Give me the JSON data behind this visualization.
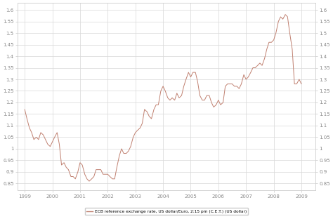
{
  "legend_label": "ECB reference exchange rate, US dollar/Euro, 2:15 pm (C.E.T.) (US dollar)",
  "line_color": "#c08070",
  "background_color": "#ffffff",
  "grid_color": "#d8d8d8",
  "ylim": [
    0.82,
    1.63
  ],
  "yticks_left": [
    0.85,
    0.9,
    0.95,
    1.0,
    1.05,
    1.1,
    1.15,
    1.2,
    1.25,
    1.3,
    1.35,
    1.4,
    1.45,
    1.5,
    1.55,
    1.6
  ],
  "ytick_labels_left": [
    "0.85",
    "0.9",
    "0.95",
    "1",
    "1.05",
    "1.1",
    "1.15",
    "1.2",
    "1.25",
    "1.3",
    "1.35",
    "1.4",
    "1.45",
    "1.5",
    "1.55",
    "1.6"
  ],
  "ytick_labels_right": [
    "0.85",
    "0.9",
    "0.95",
    "1",
    "1.05",
    "1.1",
    "1.15",
    "1.2",
    "1.25",
    "1.3",
    "1.35",
    "1.4",
    "1.45",
    "1.5",
    "1.55",
    "1.6"
  ],
  "xtick_labels": [
    "1999",
    "2000",
    "2001",
    "2002",
    "2003",
    "2004",
    "2005",
    "2006",
    "2007",
    "2008",
    "2009"
  ],
  "xlim": [
    1998.75,
    2009.5
  ],
  "data": [
    [
      1999.0,
      1.17
    ],
    [
      1999.08,
      1.13
    ],
    [
      1999.17,
      1.09
    ],
    [
      1999.25,
      1.07
    ],
    [
      1999.33,
      1.04
    ],
    [
      1999.42,
      1.05
    ],
    [
      1999.5,
      1.04
    ],
    [
      1999.58,
      1.07
    ],
    [
      1999.67,
      1.06
    ],
    [
      1999.75,
      1.04
    ],
    [
      1999.83,
      1.02
    ],
    [
      1999.92,
      1.01
    ],
    [
      2000.0,
      1.03
    ],
    [
      2000.08,
      1.05
    ],
    [
      2000.17,
      1.07
    ],
    [
      2000.25,
      1.02
    ],
    [
      2000.33,
      0.93
    ],
    [
      2000.42,
      0.94
    ],
    [
      2000.5,
      0.92
    ],
    [
      2000.58,
      0.91
    ],
    [
      2000.67,
      0.88
    ],
    [
      2000.75,
      0.88
    ],
    [
      2000.83,
      0.87
    ],
    [
      2000.92,
      0.9
    ],
    [
      2001.0,
      0.94
    ],
    [
      2001.08,
      0.93
    ],
    [
      2001.17,
      0.89
    ],
    [
      2001.25,
      0.87
    ],
    [
      2001.33,
      0.86
    ],
    [
      2001.42,
      0.87
    ],
    [
      2001.5,
      0.88
    ],
    [
      2001.58,
      0.91
    ],
    [
      2001.67,
      0.91
    ],
    [
      2001.75,
      0.91
    ],
    [
      2001.83,
      0.89
    ],
    [
      2001.92,
      0.89
    ],
    [
      2002.0,
      0.89
    ],
    [
      2002.08,
      0.88
    ],
    [
      2002.17,
      0.87
    ],
    [
      2002.25,
      0.87
    ],
    [
      2002.33,
      0.92
    ],
    [
      2002.42,
      0.97
    ],
    [
      2002.5,
      1.0
    ],
    [
      2002.58,
      0.98
    ],
    [
      2002.67,
      0.98
    ],
    [
      2002.75,
      0.99
    ],
    [
      2002.83,
      1.01
    ],
    [
      2002.92,
      1.05
    ],
    [
      2003.0,
      1.07
    ],
    [
      2003.08,
      1.08
    ],
    [
      2003.17,
      1.09
    ],
    [
      2003.25,
      1.11
    ],
    [
      2003.33,
      1.17
    ],
    [
      2003.42,
      1.16
    ],
    [
      2003.5,
      1.14
    ],
    [
      2003.58,
      1.13
    ],
    [
      2003.67,
      1.17
    ],
    [
      2003.75,
      1.19
    ],
    [
      2003.83,
      1.19
    ],
    [
      2003.92,
      1.25
    ],
    [
      2004.0,
      1.27
    ],
    [
      2004.08,
      1.25
    ],
    [
      2004.17,
      1.22
    ],
    [
      2004.25,
      1.21
    ],
    [
      2004.33,
      1.22
    ],
    [
      2004.42,
      1.21
    ],
    [
      2004.5,
      1.24
    ],
    [
      2004.58,
      1.22
    ],
    [
      2004.67,
      1.23
    ],
    [
      2004.75,
      1.27
    ],
    [
      2004.83,
      1.3
    ],
    [
      2004.92,
      1.33
    ],
    [
      2005.0,
      1.31
    ],
    [
      2005.08,
      1.33
    ],
    [
      2005.17,
      1.33
    ],
    [
      2005.25,
      1.29
    ],
    [
      2005.33,
      1.23
    ],
    [
      2005.42,
      1.21
    ],
    [
      2005.5,
      1.21
    ],
    [
      2005.58,
      1.23
    ],
    [
      2005.67,
      1.23
    ],
    [
      2005.75,
      1.2
    ],
    [
      2005.83,
      1.18
    ],
    [
      2005.92,
      1.19
    ],
    [
      2006.0,
      1.21
    ],
    [
      2006.08,
      1.19
    ],
    [
      2006.17,
      1.2
    ],
    [
      2006.25,
      1.27
    ],
    [
      2006.33,
      1.28
    ],
    [
      2006.42,
      1.28
    ],
    [
      2006.5,
      1.28
    ],
    [
      2006.58,
      1.27
    ],
    [
      2006.67,
      1.27
    ],
    [
      2006.75,
      1.26
    ],
    [
      2006.83,
      1.28
    ],
    [
      2006.92,
      1.32
    ],
    [
      2007.0,
      1.3
    ],
    [
      2007.08,
      1.31
    ],
    [
      2007.17,
      1.33
    ],
    [
      2007.25,
      1.35
    ],
    [
      2007.33,
      1.35
    ],
    [
      2007.42,
      1.36
    ],
    [
      2007.5,
      1.37
    ],
    [
      2007.58,
      1.36
    ],
    [
      2007.67,
      1.39
    ],
    [
      2007.75,
      1.43
    ],
    [
      2007.83,
      1.46
    ],
    [
      2007.92,
      1.46
    ],
    [
      2008.0,
      1.47
    ],
    [
      2008.08,
      1.5
    ],
    [
      2008.17,
      1.55
    ],
    [
      2008.25,
      1.57
    ],
    [
      2008.33,
      1.56
    ],
    [
      2008.42,
      1.58
    ],
    [
      2008.5,
      1.57
    ],
    [
      2008.58,
      1.5
    ],
    [
      2008.67,
      1.43
    ],
    [
      2008.75,
      1.28
    ],
    [
      2008.83,
      1.28
    ],
    [
      2008.92,
      1.3
    ],
    [
      2009.0,
      1.28
    ]
  ]
}
